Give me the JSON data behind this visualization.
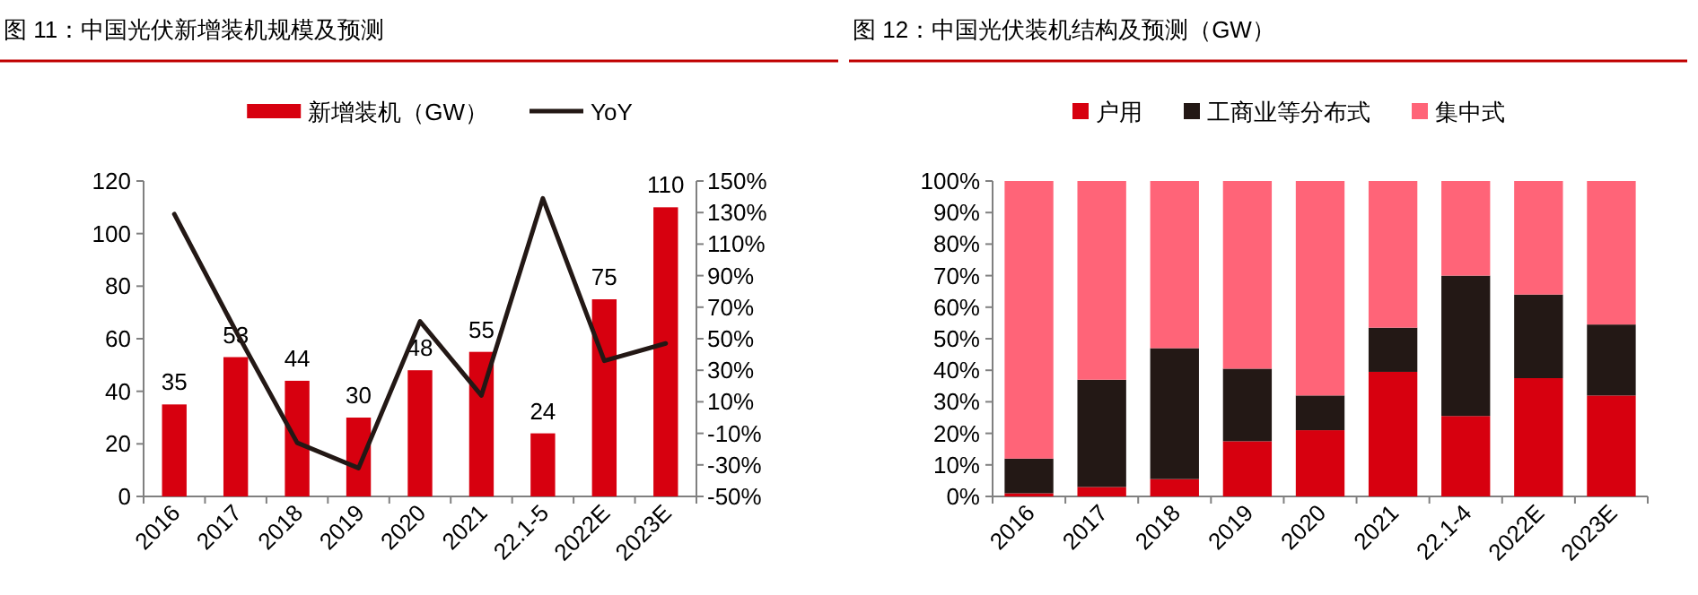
{
  "chart_data": [
    {
      "type": "bar",
      "title": "图 11：中国光伏新增装机规模及预测",
      "categories": [
        "2016",
        "2017",
        "2018",
        "2019",
        "2020",
        "2021",
        "22.1-5",
        "2022E",
        "2023E"
      ],
      "series": [
        {
          "name": "新增装机（GW）",
          "color": "#d7000f",
          "values": [
            35,
            53,
            44,
            30,
            48,
            55,
            24,
            75,
            110
          ],
          "value_labels": [
            "35",
            "53",
            "44",
            "30",
            "48",
            "55",
            "24",
            "75",
            "110"
          ]
        },
        {
          "name": "YoY",
          "type": "line",
          "axis": "y2",
          "color": "#231815",
          "values": [
            129,
            55,
            -16,
            -32,
            61,
            14,
            139,
            36,
            47
          ]
        }
      ],
      "legend": "top",
      "ylim": [
        0,
        120
      ],
      "yticks": [
        0,
        20,
        40,
        60,
        80,
        100,
        120
      ],
      "y2lim": [
        -50,
        150
      ],
      "y2ticks": [
        {
          "value": -50,
          "label": "-50%"
        },
        {
          "value": -30,
          "label": "-30%"
        },
        {
          "value": -10,
          "label": "-10%"
        },
        {
          "value": 10,
          "label": "10%"
        },
        {
          "value": 30,
          "label": "30%"
        },
        {
          "value": 50,
          "label": "50%"
        },
        {
          "value": 70,
          "label": "70%"
        },
        {
          "value": 90,
          "label": "90%"
        },
        {
          "value": 110,
          "label": "110%"
        },
        {
          "value": 130,
          "label": "130%"
        },
        {
          "value": 150,
          "label": "150%"
        }
      ]
    },
    {
      "type": "bar",
      "title": "图 12：中国光伏装机结构及预测（GW）",
      "categories": [
        "2016",
        "2017",
        "2018",
        "2019",
        "2020",
        "2021",
        "22.1-4",
        "2022E",
        "2023E"
      ],
      "stacked": true,
      "series": [
        {
          "name": "户用",
          "color": "#d7000f",
          "values": [
            1,
            3,
            5.5,
            17.5,
            21,
            39.5,
            25.5,
            37.5,
            32
          ]
        },
        {
          "name": "工商业等分布式",
          "color": "#231815",
          "values": [
            11,
            34,
            41.5,
            23,
            11,
            14,
            44.5,
            26.5,
            22.5
          ]
        },
        {
          "name": "集中式",
          "color": "#ff6478",
          "values": [
            88,
            63,
            53,
            59.5,
            68,
            46.5,
            30,
            36,
            45.5
          ]
        }
      ],
      "legend": "top",
      "ylim": [
        0,
        100
      ],
      "yticks": [
        {
          "value": 0,
          "label": "0%"
        },
        {
          "value": 10,
          "label": "10%"
        },
        {
          "value": 20,
          "label": "20%"
        },
        {
          "value": 30,
          "label": "30%"
        },
        {
          "value": 40,
          "label": "40%"
        },
        {
          "value": 50,
          "label": "50%"
        },
        {
          "value": 60,
          "label": "60%"
        },
        {
          "value": 70,
          "label": "70%"
        },
        {
          "value": 80,
          "label": "80%"
        },
        {
          "value": 90,
          "label": "90%"
        },
        {
          "value": 100,
          "label": "100%"
        }
      ]
    }
  ]
}
